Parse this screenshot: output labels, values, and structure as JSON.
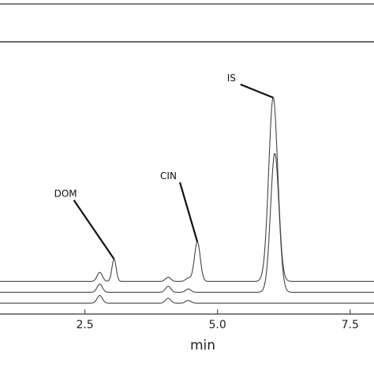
{
  "chart_data": {
    "type": "line",
    "title": "",
    "xlabel": "min",
    "ylabel": "",
    "xlim": [
      0.9,
      7.95
    ],
    "ylim": [
      -0.4,
      9.6
    ],
    "x_ticks": [
      {
        "value": 2.5,
        "label": "2.5"
      },
      {
        "value": 5.0,
        "label": "5.0"
      },
      {
        "value": 7.5,
        "label": "7.5"
      }
    ],
    "grid": false,
    "series": [
      {
        "baseline": 0.0,
        "peaks": [
          {
            "x": 2.78,
            "height": 0.28,
            "width": 0.05
          },
          {
            "x": 4.07,
            "height": 0.18,
            "width": 0.05
          },
          {
            "x": 4.45,
            "height": 0.1,
            "width": 0.05
          }
        ]
      },
      {
        "baseline": 0.4,
        "peaks": [
          {
            "x": 2.78,
            "height": 0.3,
            "width": 0.05
          },
          {
            "x": 4.07,
            "height": 0.22,
            "width": 0.05
          },
          {
            "x": 4.45,
            "height": 0.12,
            "width": 0.05
          },
          {
            "x": 6.08,
            "height": 5.1,
            "width": 0.08
          }
        ]
      },
      {
        "baseline": 0.8,
        "peaks": [
          {
            "x": 2.78,
            "height": 0.33,
            "width": 0.05
          },
          {
            "x": 3.05,
            "height": 0.82,
            "width": 0.04
          },
          {
            "x": 4.07,
            "height": 0.15,
            "width": 0.05
          },
          {
            "x": 4.45,
            "height": 0.12,
            "width": 0.05
          },
          {
            "x": 4.62,
            "height": 1.45,
            "width": 0.055
          },
          {
            "x": 6.05,
            "height": 6.75,
            "width": 0.085
          }
        ]
      }
    ],
    "annotations": [
      {
        "text": "DOM",
        "peak_x": 3.05,
        "peak_y": 1.62,
        "label_x": 1.92,
        "label_y": 3.9
      },
      {
        "text": "CIN",
        "peak_x": 4.62,
        "peak_y": 2.25,
        "label_x": 3.92,
        "label_y": 4.55
      },
      {
        "text": "IS",
        "peak_x": 6.05,
        "peak_y": 7.55,
        "label_x": 5.18,
        "label_y": 8.15
      }
    ]
  }
}
